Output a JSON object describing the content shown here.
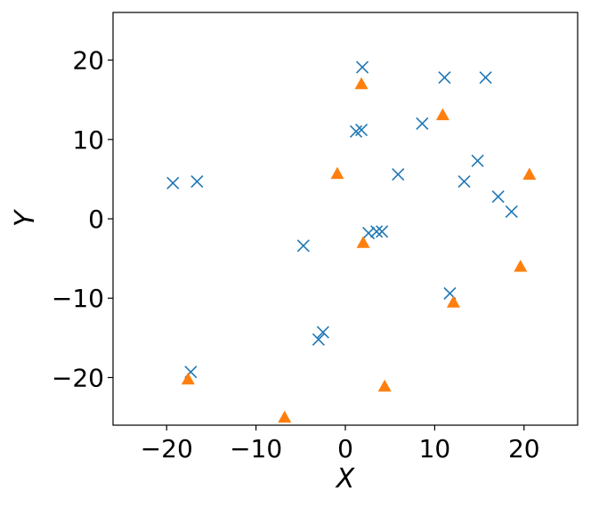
{
  "chart_data": {
    "type": "scatter",
    "title": "",
    "xlabel": "X",
    "ylabel": "Y",
    "xlim": [
      -26,
      26
    ],
    "ylim": [
      -26,
      26
    ],
    "xticks": [
      -20,
      -10,
      0,
      10,
      20
    ],
    "yticks": [
      -20,
      -10,
      0,
      10,
      20
    ],
    "xtick_labels": [
      "−20",
      "−10",
      "0",
      "10",
      "20"
    ],
    "ytick_labels": [
      "−20",
      "−10",
      "0",
      "10",
      "20"
    ],
    "grid": false,
    "legend": "none",
    "series": [
      {
        "marker": "x",
        "color": "#1f77b4",
        "points": [
          [
            -19.3,
            4.5
          ],
          [
            -16.6,
            4.7
          ],
          [
            -4.7,
            -3.4
          ],
          [
            -3.0,
            -15.2
          ],
          [
            -2.5,
            -14.3
          ],
          [
            -17.3,
            -19.3
          ],
          [
            1.2,
            11.0
          ],
          [
            1.8,
            11.2
          ],
          [
            1.9,
            19.1
          ],
          [
            2.6,
            -1.8
          ],
          [
            3.5,
            -1.6
          ],
          [
            4.1,
            -1.6
          ],
          [
            5.9,
            5.6
          ],
          [
            8.6,
            12.0
          ],
          [
            11.1,
            17.8
          ],
          [
            11.7,
            -9.4
          ],
          [
            13.3,
            4.7
          ],
          [
            14.8,
            7.3
          ],
          [
            15.7,
            17.8
          ],
          [
            17.1,
            2.8
          ],
          [
            18.6,
            0.9
          ]
        ]
      },
      {
        "marker": "triangle",
        "color": "#ff7f0e",
        "points": [
          [
            1.8,
            17.0
          ],
          [
            -0.9,
            5.7
          ],
          [
            2.0,
            -3.0
          ],
          [
            10.9,
            13.1
          ],
          [
            12.1,
            -10.5
          ],
          [
            19.6,
            -6.0
          ],
          [
            20.6,
            5.6
          ],
          [
            -17.6,
            -20.2
          ],
          [
            4.4,
            -21.1
          ],
          [
            -6.8,
            -25.0
          ]
        ]
      }
    ]
  }
}
